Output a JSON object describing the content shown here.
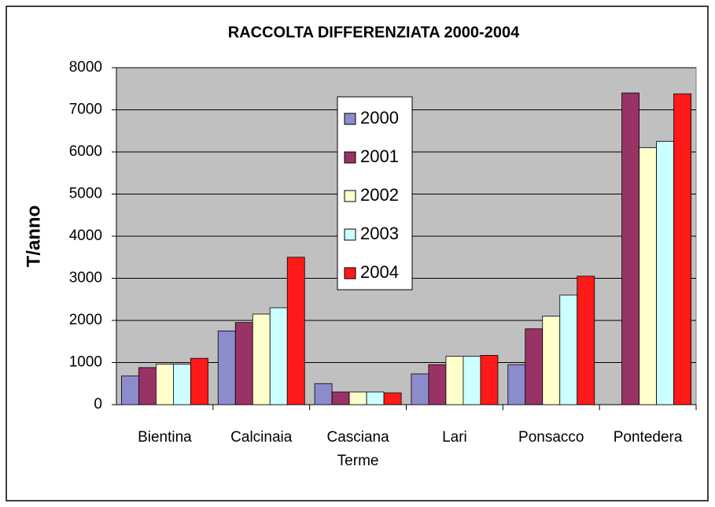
{
  "chart_data": {
    "type": "bar",
    "title": "RACCOLTA DIFFERENZIATA 2000-2004",
    "y_label": "T/anno",
    "categories": [
      "Bientina",
      "Calcinaia",
      "Casciana Terme",
      "Lari",
      "Ponsacco",
      "Pontedera"
    ],
    "series": [
      {
        "name": "2000",
        "color": "#8c8ccc",
        "values": [
          680,
          1750,
          500,
          730,
          950,
          null
        ]
      },
      {
        "name": "2001",
        "color": "#993366",
        "values": [
          880,
          1950,
          300,
          950,
          1800,
          7400
        ]
      },
      {
        "name": "2002",
        "color": "#ffffcc",
        "values": [
          960,
          2150,
          300,
          1150,
          2100,
          6100
        ]
      },
      {
        "name": "2003",
        "color": "#ccffff",
        "values": [
          960,
          2300,
          300,
          1150,
          2600,
          6250
        ]
      },
      {
        "name": "2004",
        "color": "#ff1a1a",
        "values": [
          1100,
          3500,
          280,
          1170,
          3050,
          7380
        ]
      }
    ],
    "ylim": [
      0,
      8000
    ],
    "yticks": [
      0,
      1000,
      2000,
      3000,
      4000,
      5000,
      6000,
      7000,
      8000
    ],
    "grid": true,
    "plot_background": "#c0c0c0",
    "legend": "top-center"
  }
}
